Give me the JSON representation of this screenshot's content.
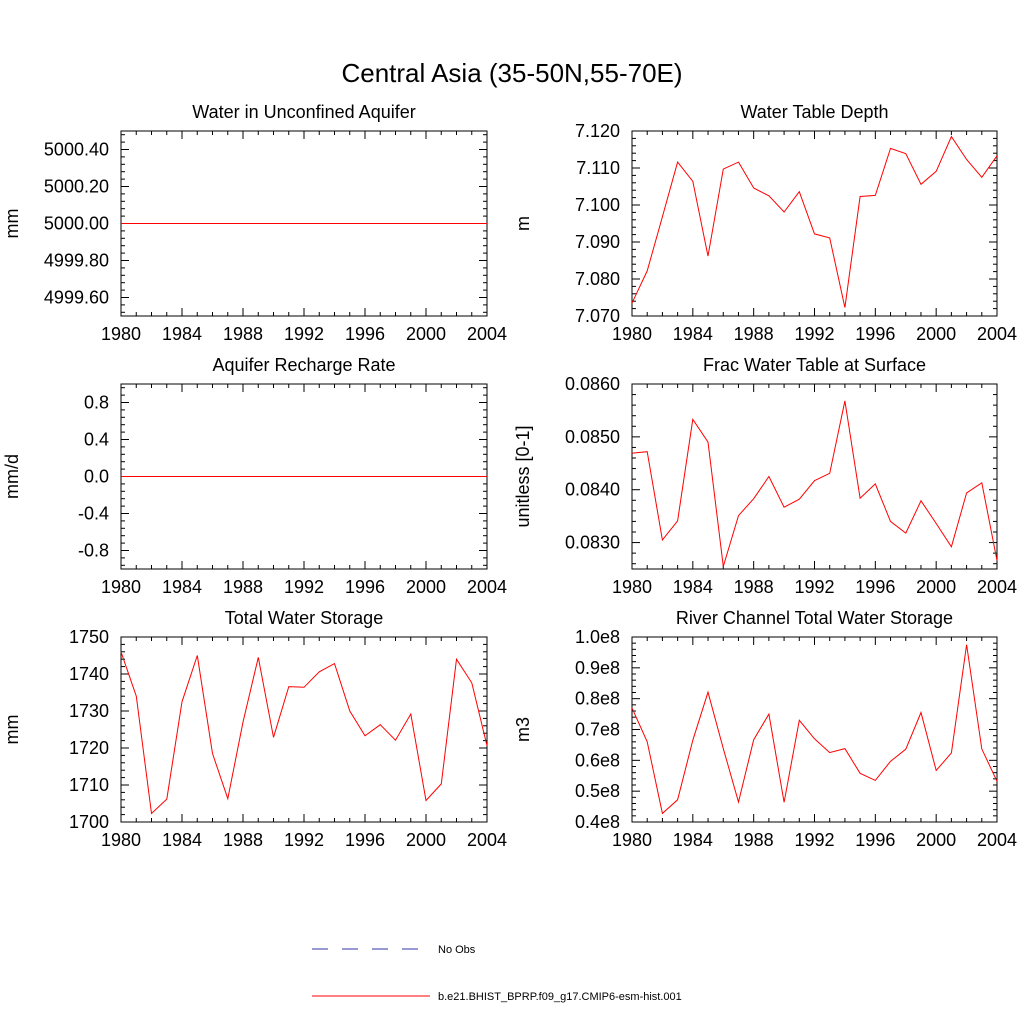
{
  "figure": {
    "title": "Central Asia (35-50N,55-70E)"
  },
  "legend": {
    "obs_label": "No Obs",
    "obs_color": "#3333aa",
    "model_label": "b.e21.BHIST_BPRP.f09_g17.CMIP6-esm-hist.001",
    "model_color": "#ff0000"
  },
  "chart_data": [
    {
      "type": "line",
      "title": "Water in Unconfined Aquifer",
      "ylabel": "mm",
      "xlim": [
        1980,
        2004
      ],
      "ylim": [
        4999.5,
        5000.5
      ],
      "xticks": [
        1980,
        1984,
        1988,
        1992,
        1996,
        2000,
        2004
      ],
      "xtick_labels": [
        "1980",
        "1984",
        "1988",
        "1992",
        "1996",
        "2000",
        "2004"
      ],
      "yticks": [
        4999.6,
        4999.8,
        5000.0,
        5000.2,
        5000.4
      ],
      "ytick_labels": [
        "4999.60",
        "4999.80",
        "5000.00",
        "5000.20",
        "5000.40"
      ],
      "series": [
        {
          "x": [
            1980,
            1981,
            1982,
            1983,
            1984,
            1985,
            1986,
            1987,
            1988,
            1989,
            1990,
            1991,
            1992,
            1993,
            1994,
            1995,
            1996,
            1997,
            1998,
            1999,
            2000,
            2001,
            2002,
            2003,
            2004
          ],
          "values": [
            5000,
            5000,
            5000,
            5000,
            5000,
            5000,
            5000,
            5000,
            5000,
            5000,
            5000,
            5000,
            5000,
            5000,
            5000,
            5000,
            5000,
            5000,
            5000,
            5000,
            5000,
            5000,
            5000,
            5000,
            5000
          ]
        }
      ]
    },
    {
      "type": "line",
      "title": "Water Table Depth",
      "ylabel": "m",
      "xlim": [
        1980,
        2004
      ],
      "ylim": [
        7.07,
        7.12
      ],
      "xticks": [
        1980,
        1984,
        1988,
        1992,
        1996,
        2000,
        2004
      ],
      "xtick_labels": [
        "1980",
        "1984",
        "1988",
        "1992",
        "1996",
        "2000",
        "2004"
      ],
      "yticks": [
        7.07,
        7.08,
        7.09,
        7.1,
        7.11,
        7.12
      ],
      "ytick_labels": [
        "7.070",
        "7.080",
        "7.090",
        "7.100",
        "7.110",
        "7.120"
      ],
      "series": [
        {
          "x": [
            1980,
            1981,
            1982,
            1983,
            1984,
            1985,
            1986,
            1987,
            1988,
            1989,
            1990,
            1991,
            1992,
            1993,
            1994,
            1995,
            1996,
            1997,
            1998,
            1999,
            2000,
            2001,
            2002,
            2003,
            2004
          ],
          "values": [
            7.0735,
            7.0822,
            7.0968,
            7.1116,
            7.1064,
            7.0862,
            7.1097,
            7.1116,
            7.1046,
            7.1025,
            7.0981,
            7.1036,
            7.0922,
            7.0911,
            7.0723,
            7.1023,
            7.1026,
            7.1153,
            7.1139,
            7.1056,
            7.1091,
            7.1185,
            7.1123,
            7.1075,
            7.1133
          ]
        }
      ]
    },
    {
      "type": "line",
      "title": "Aquifer Recharge Rate",
      "ylabel": "mm/d",
      "xlim": [
        1980,
        2004
      ],
      "ylim": [
        -1.0,
        1.0
      ],
      "xticks": [
        1980,
        1984,
        1988,
        1992,
        1996,
        2000,
        2004
      ],
      "xtick_labels": [
        "1980",
        "1984",
        "1988",
        "1992",
        "1996",
        "2000",
        "2004"
      ],
      "yticks": [
        -0.8,
        -0.4,
        0.0,
        0.4,
        0.8
      ],
      "ytick_labels": [
        "-0.8",
        "-0.4",
        "0.0",
        "0.4",
        "0.8"
      ],
      "series": [
        {
          "x": [
            1980,
            1981,
            1982,
            1983,
            1984,
            1985,
            1986,
            1987,
            1988,
            1989,
            1990,
            1991,
            1992,
            1993,
            1994,
            1995,
            1996,
            1997,
            1998,
            1999,
            2000,
            2001,
            2002,
            2003,
            2004
          ],
          "values": [
            0,
            0,
            0,
            0,
            0,
            0,
            0,
            0,
            0,
            0,
            0,
            0,
            0,
            0,
            0,
            0,
            0,
            0,
            0,
            0,
            0,
            0,
            0,
            0,
            0
          ]
        }
      ]
    },
    {
      "type": "line",
      "title": "Frac Water Table at Surface",
      "ylabel": "unitless [0-1]",
      "xlim": [
        1980,
        2004
      ],
      "ylim": [
        0.0825,
        0.086
      ],
      "xticks": [
        1980,
        1984,
        1988,
        1992,
        1996,
        2000,
        2004
      ],
      "xtick_labels": [
        "1980",
        "1984",
        "1988",
        "1992",
        "1996",
        "2000",
        "2004"
      ],
      "yticks": [
        0.083,
        0.084,
        0.085,
        0.086
      ],
      "ytick_labels": [
        "0.0830",
        "0.0840",
        "0.0850",
        "0.0860"
      ],
      "series": [
        {
          "x": [
            1980,
            1981,
            1982,
            1983,
            1984,
            1985,
            1986,
            1987,
            1988,
            1989,
            1990,
            1991,
            1992,
            1993,
            1994,
            1995,
            1996,
            1997,
            1998,
            1999,
            2000,
            2001,
            2002,
            2003,
            2004
          ],
          "values": [
            0.08469,
            0.08472,
            0.08305,
            0.08341,
            0.08533,
            0.0849,
            0.08255,
            0.08351,
            0.08383,
            0.08425,
            0.08367,
            0.08382,
            0.08417,
            0.08431,
            0.08568,
            0.08384,
            0.08411,
            0.0834,
            0.08318,
            0.08379,
            0.08336,
            0.08292,
            0.08394,
            0.08413,
            0.08266
          ]
        }
      ]
    },
    {
      "type": "line",
      "title": "Total Water Storage",
      "ylabel": "mm",
      "xlim": [
        1980,
        2004
      ],
      "ylim": [
        1700,
        1750
      ],
      "xticks": [
        1980,
        1984,
        1988,
        1992,
        1996,
        2000,
        2004
      ],
      "xtick_labels": [
        "1980",
        "1984",
        "1988",
        "1992",
        "1996",
        "2000",
        "2004"
      ],
      "yticks": [
        1700,
        1710,
        1720,
        1730,
        1740,
        1750
      ],
      "ytick_labels": [
        "1700",
        "1710",
        "1720",
        "1730",
        "1740",
        "1750"
      ],
      "series": [
        {
          "x": [
            1980,
            1981,
            1982,
            1983,
            1984,
            1985,
            1986,
            1987,
            1988,
            1989,
            1990,
            1991,
            1992,
            1993,
            1994,
            1995,
            1996,
            1997,
            1998,
            1999,
            2000,
            2001,
            2002,
            2003,
            2004
          ],
          "values": [
            1746,
            1734,
            1702.3,
            1706.2,
            1732.5,
            1745,
            1718.5,
            1706.3,
            1727,
            1744.5,
            1722.9,
            1736.6,
            1736.4,
            1740.6,
            1742.8,
            1730,
            1723.3,
            1726.3,
            1722.1,
            1729.2,
            1705.8,
            1710.3,
            1744,
            1737.6,
            1720.6
          ]
        }
      ]
    },
    {
      "type": "line",
      "title": "River Channel Total Water Storage",
      "ylabel": "m3",
      "xlim": [
        1980,
        2004
      ],
      "ylim": [
        40000000,
        100000000
      ],
      "xticks": [
        1980,
        1984,
        1988,
        1992,
        1996,
        2000,
        2004
      ],
      "xtick_labels": [
        "1980",
        "1984",
        "1988",
        "1992",
        "1996",
        "2000",
        "2004"
      ],
      "yticks": [
        40000000,
        50000000,
        60000000,
        70000000,
        80000000,
        90000000,
        100000000
      ],
      "ytick_labels": [
        "0.4e8",
        "0.5e8",
        "0.6e8",
        "0.7e8",
        "0.8e8",
        "0.9e8",
        "1.0e8"
      ],
      "series": [
        {
          "x": [
            1980,
            1981,
            1982,
            1983,
            1984,
            1985,
            1986,
            1987,
            1988,
            1989,
            1990,
            1991,
            1992,
            1993,
            1994,
            1995,
            1996,
            1997,
            1998,
            1999,
            2000,
            2001,
            2002,
            2003,
            2004
          ],
          "values": [
            77000000,
            66000000,
            42800000,
            47200000,
            66500000,
            82100000,
            63800000,
            46500000,
            66700000,
            75000000,
            46400000,
            73000000,
            67000000,
            62500000,
            63800000,
            55800000,
            53500000,
            59700000,
            63600000,
            75500000,
            56700000,
            62400000,
            97500000,
            63700000,
            53200000
          ]
        }
      ]
    }
  ]
}
